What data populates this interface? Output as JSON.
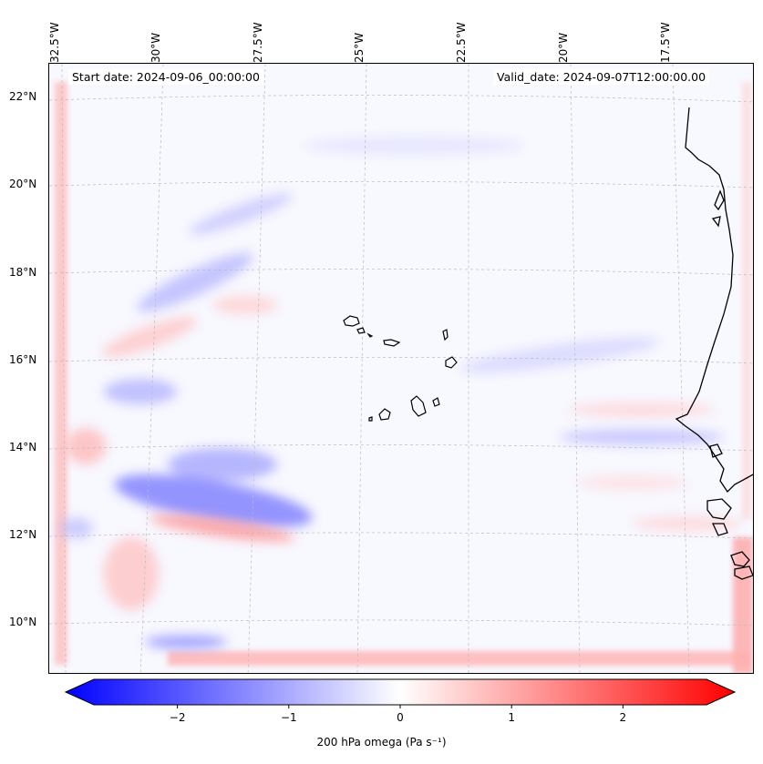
{
  "map": {
    "start_date": "Start date: 2024-09-06_00:00:00",
    "valid_date": "Valid_date: 2024-09-07T12:00:00.00",
    "longitude_labels": [
      "32.5°W",
      "30°W",
      "27.5°W",
      "25°W",
      "22.5°W",
      "20°W",
      "17.5°W"
    ],
    "latitude_labels": [
      "22°N",
      "20°N",
      "18°N",
      "16°N",
      "14°N",
      "12°N",
      "10°N"
    ],
    "features": [
      "Cabo Verde islands",
      "West African coastline"
    ]
  },
  "colorbar": {
    "label": "200 hPa omega (Pa s⁻¹)",
    "ticks": [
      "−2",
      "−1",
      "0",
      "1",
      "2"
    ],
    "tick_values": [
      -2,
      -1,
      0,
      1,
      2
    ],
    "range": [
      -2.75,
      2.75
    ],
    "colormap": "bwr",
    "color_min": "#0000ff",
    "color_mid": "#ffffff",
    "color_max": "#ff0000"
  }
}
